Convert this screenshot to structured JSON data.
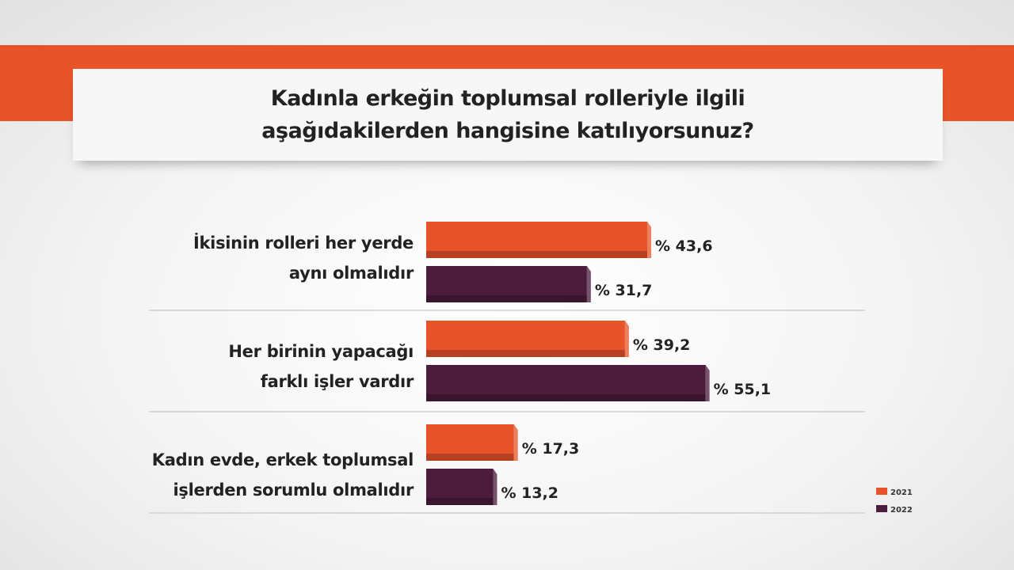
{
  "colors": {
    "accent": "#e8542a",
    "y2021": "#e8542a",
    "y2022": "#4b1c3c",
    "text": "#222222"
  },
  "title_lines": [
    "Kadınla erkeğin toplumsal rolleriyle ilgili",
    "aşağıdakilerden hangisine katılıyorsunuz?"
  ],
  "chart_data": {
    "type": "bar",
    "orientation": "horizontal",
    "categories": [
      [
        "İkisinin rolleri her yerde",
        "aynı olmalıdır"
      ],
      [
        "Her birinin yapacağı",
        "farklı işler vardır"
      ],
      [
        "Kadın evde, erkek toplumsal",
        "işlerden sorumlu olmalıdır"
      ]
    ],
    "series": [
      {
        "name": "2021",
        "values": [
          43.6,
          39.2,
          17.3
        ],
        "labels": [
          "% 43,6",
          "% 39,2",
          "% 17,3"
        ]
      },
      {
        "name": "2022",
        "values": [
          31.7,
          55.1,
          13.2
        ],
        "labels": [
          "% 31,7",
          "% 55,1",
          "% 13,2"
        ]
      }
    ],
    "legend_position": "bottom-right",
    "grid": false
  }
}
